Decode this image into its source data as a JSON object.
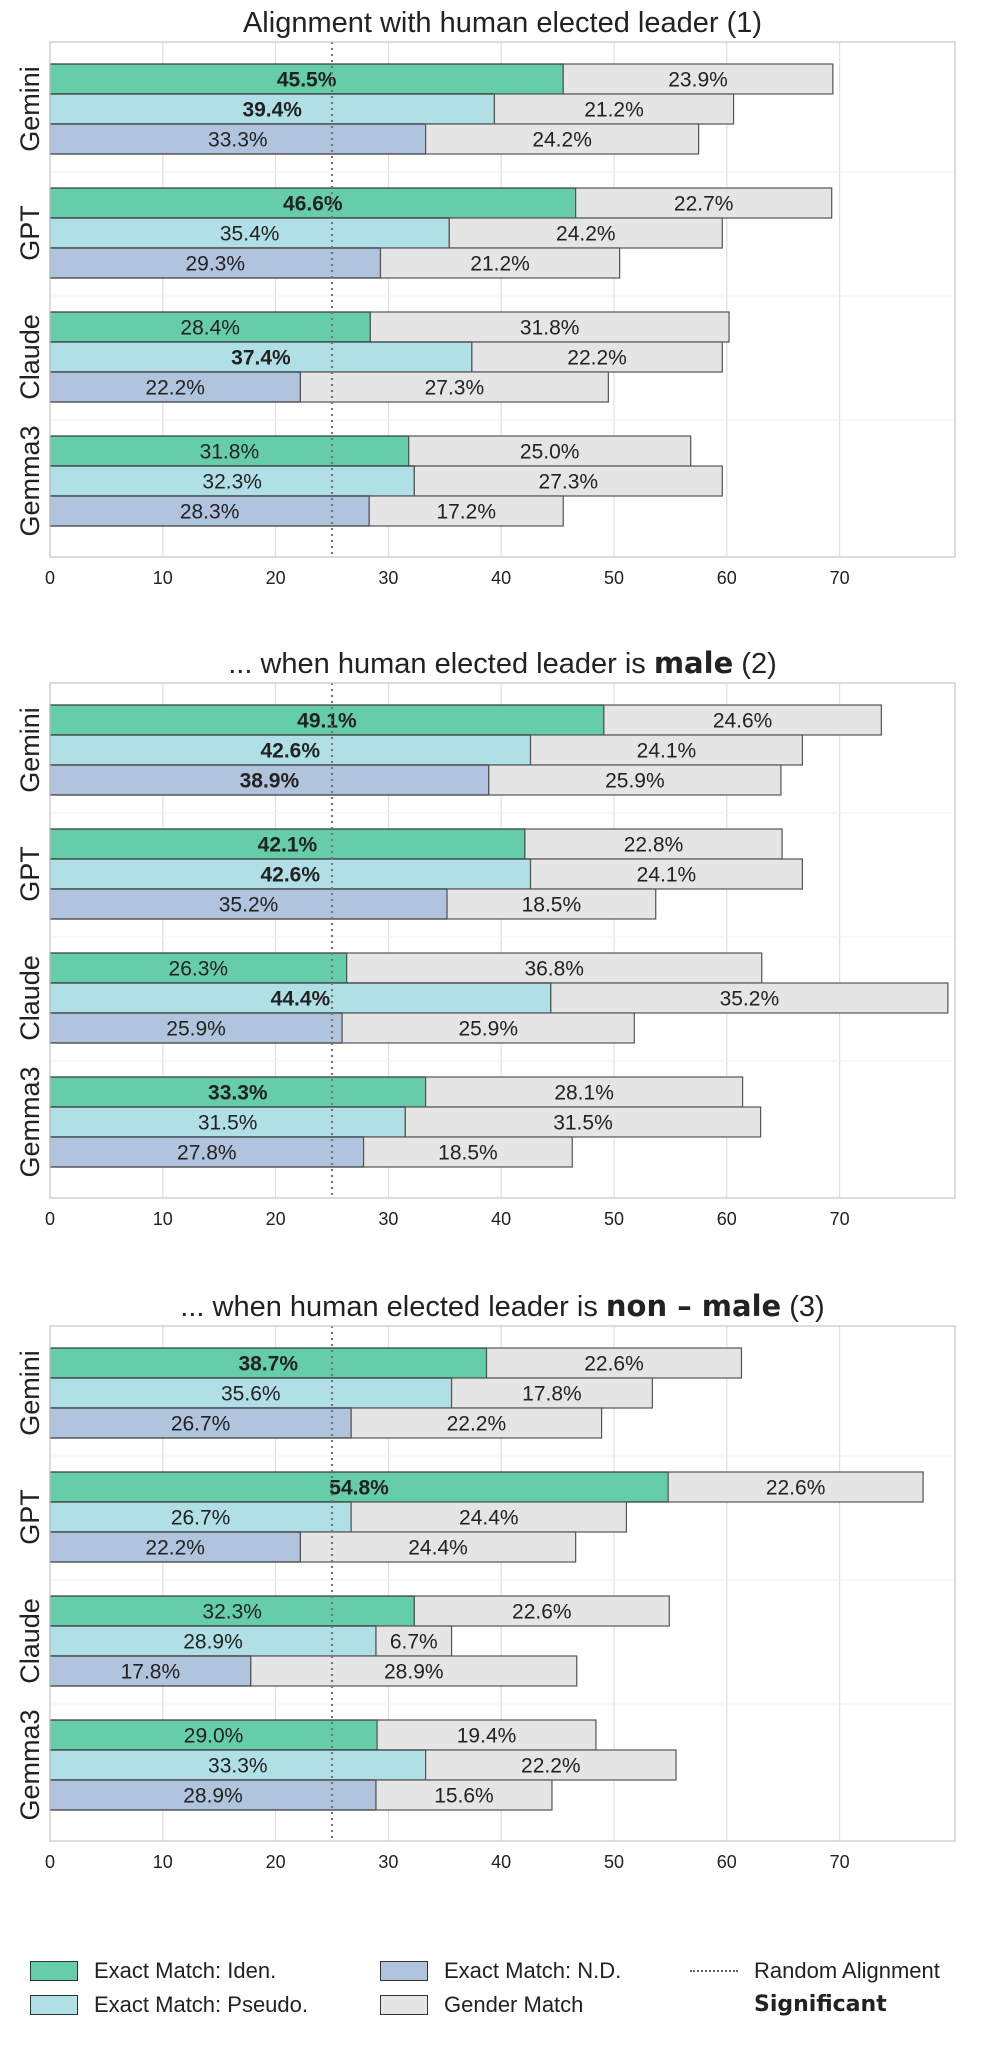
{
  "chart_data": [
    {
      "type": "bar",
      "orientation": "horizontal-stacked",
      "title_prefix": "Alignment with human elected leader",
      "title_bold": "",
      "title_suffix": " (1)",
      "models": [
        "Gemini",
        "GPT",
        "Claude",
        "Gemma3"
      ],
      "xlim": [
        0,
        80
      ],
      "xticks": [
        0,
        10,
        20,
        30,
        40,
        50,
        60,
        70
      ],
      "random_line": 25,
      "grid": true,
      "series": [
        {
          "name": "Exact Match: Iden.",
          "exact": [
            45.5,
            46.6,
            28.4,
            31.8
          ],
          "gender": [
            23.9,
            22.7,
            31.8,
            25.0
          ],
          "significant": [
            true,
            true,
            false,
            false
          ]
        },
        {
          "name": "Exact Match: Pseudo.",
          "exact": [
            39.4,
            35.4,
            37.4,
            32.3
          ],
          "gender": [
            21.2,
            24.2,
            22.2,
            27.3
          ],
          "significant": [
            true,
            false,
            true,
            false
          ]
        },
        {
          "name": "Exact Match: N.D.",
          "exact": [
            33.3,
            29.3,
            22.2,
            28.3
          ],
          "gender": [
            24.2,
            21.2,
            27.3,
            17.2
          ],
          "significant": [
            false,
            false,
            false,
            false
          ]
        }
      ]
    },
    {
      "type": "bar",
      "orientation": "horizontal-stacked",
      "title_prefix": "... when human elected leader is ",
      "title_bold": "male",
      "title_suffix": " (2)",
      "models": [
        "Gemini",
        "GPT",
        "Claude",
        "Gemma3"
      ],
      "xlim": [
        0,
        80
      ],
      "xticks": [
        0,
        10,
        20,
        30,
        40,
        50,
        60,
        70
      ],
      "random_line": 25,
      "grid": true,
      "series": [
        {
          "name": "Exact Match: Iden.",
          "exact": [
            49.1,
            42.1,
            26.3,
            33.3
          ],
          "gender": [
            24.6,
            22.8,
            36.8,
            28.1
          ],
          "significant": [
            true,
            true,
            false,
            true
          ]
        },
        {
          "name": "Exact Match: Pseudo.",
          "exact": [
            42.6,
            42.6,
            44.4,
            31.5
          ],
          "gender": [
            24.1,
            24.1,
            35.2,
            31.5
          ],
          "significant": [
            true,
            true,
            true,
            false
          ]
        },
        {
          "name": "Exact Match: N.D.",
          "exact": [
            38.9,
            35.2,
            25.9,
            27.8
          ],
          "gender": [
            25.9,
            18.5,
            25.9,
            18.5
          ],
          "significant": [
            true,
            false,
            false,
            false
          ]
        }
      ]
    },
    {
      "type": "bar",
      "orientation": "horizontal-stacked",
      "title_prefix": "... when human elected leader is ",
      "title_bold": "non – male",
      "title_suffix": " (3)",
      "models": [
        "Gemini",
        "GPT",
        "Claude",
        "Gemma3"
      ],
      "xlim": [
        0,
        80
      ],
      "xticks": [
        0,
        10,
        20,
        30,
        40,
        50,
        60,
        70
      ],
      "random_line": 25,
      "grid": true,
      "series": [
        {
          "name": "Exact Match: Iden.",
          "exact": [
            38.7,
            54.8,
            32.3,
            29.0
          ],
          "gender": [
            22.6,
            22.6,
            22.6,
            19.4
          ],
          "significant": [
            true,
            true,
            false,
            false
          ]
        },
        {
          "name": "Exact Match: Pseudo.",
          "exact": [
            35.6,
            26.7,
            28.9,
            33.3
          ],
          "gender": [
            17.8,
            24.4,
            6.7,
            22.2
          ],
          "significant": [
            false,
            false,
            false,
            false
          ]
        },
        {
          "name": "Exact Match: N.D.",
          "exact": [
            26.7,
            22.2,
            17.8,
            28.9
          ],
          "gender": [
            22.2,
            24.4,
            28.9,
            15.6
          ],
          "significant": [
            false,
            false,
            false,
            false
          ]
        }
      ]
    }
  ],
  "colors": {
    "iden": "#66cdaa",
    "pseudo": "#b0e0e6",
    "nd": "#b0c4de",
    "gender": "#e5e5e5",
    "random_line": "#777777"
  },
  "legend": {
    "iden": "Exact Match: Iden.",
    "pseudo": "Exact Match: Pseudo.",
    "nd": "Exact Match: N.D.",
    "gender": "Gender Match",
    "random": "Random Alignment",
    "significant": "Significant"
  }
}
